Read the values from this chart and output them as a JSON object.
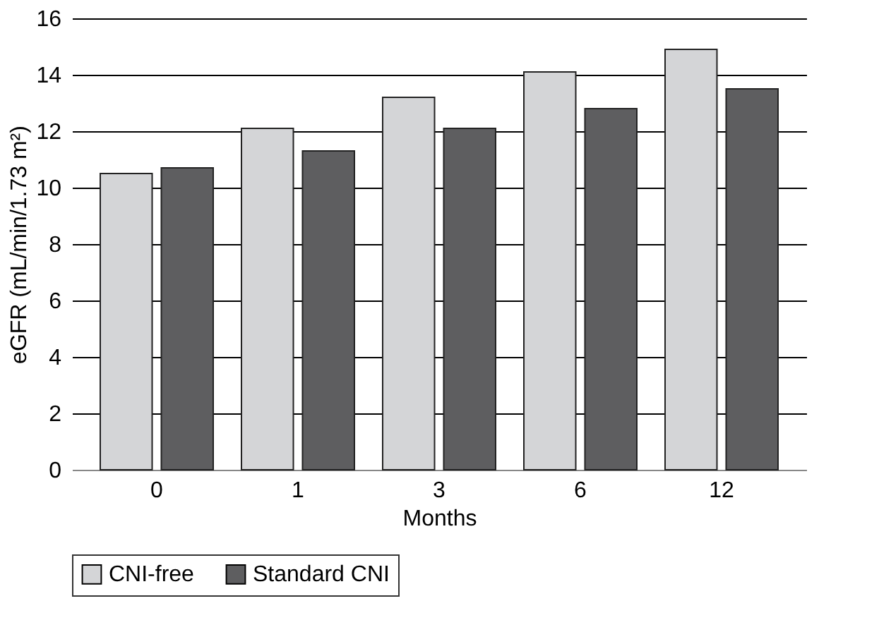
{
  "chart_data": {
    "type": "bar",
    "xlabel": "Months",
    "ylabel": "eGFR (mL/min/1.73 m²)",
    "categories": [
      "0",
      "1",
      "3",
      "6",
      "12"
    ],
    "series": [
      {
        "name": "CNI-free",
        "color": "#d4d5d7",
        "values": [
          10.5,
          12.1,
          13.2,
          14.1,
          14.9
        ]
      },
      {
        "name": "Standard CNI",
        "color": "#5e5e60",
        "values": [
          10.7,
          11.3,
          12.1,
          12.8,
          13.5
        ]
      }
    ],
    "ylim": [
      0,
      16
    ],
    "yticks": [
      0,
      2,
      4,
      6,
      8,
      10,
      12,
      14,
      16
    ],
    "grid": "y",
    "legend": "bottom"
  }
}
